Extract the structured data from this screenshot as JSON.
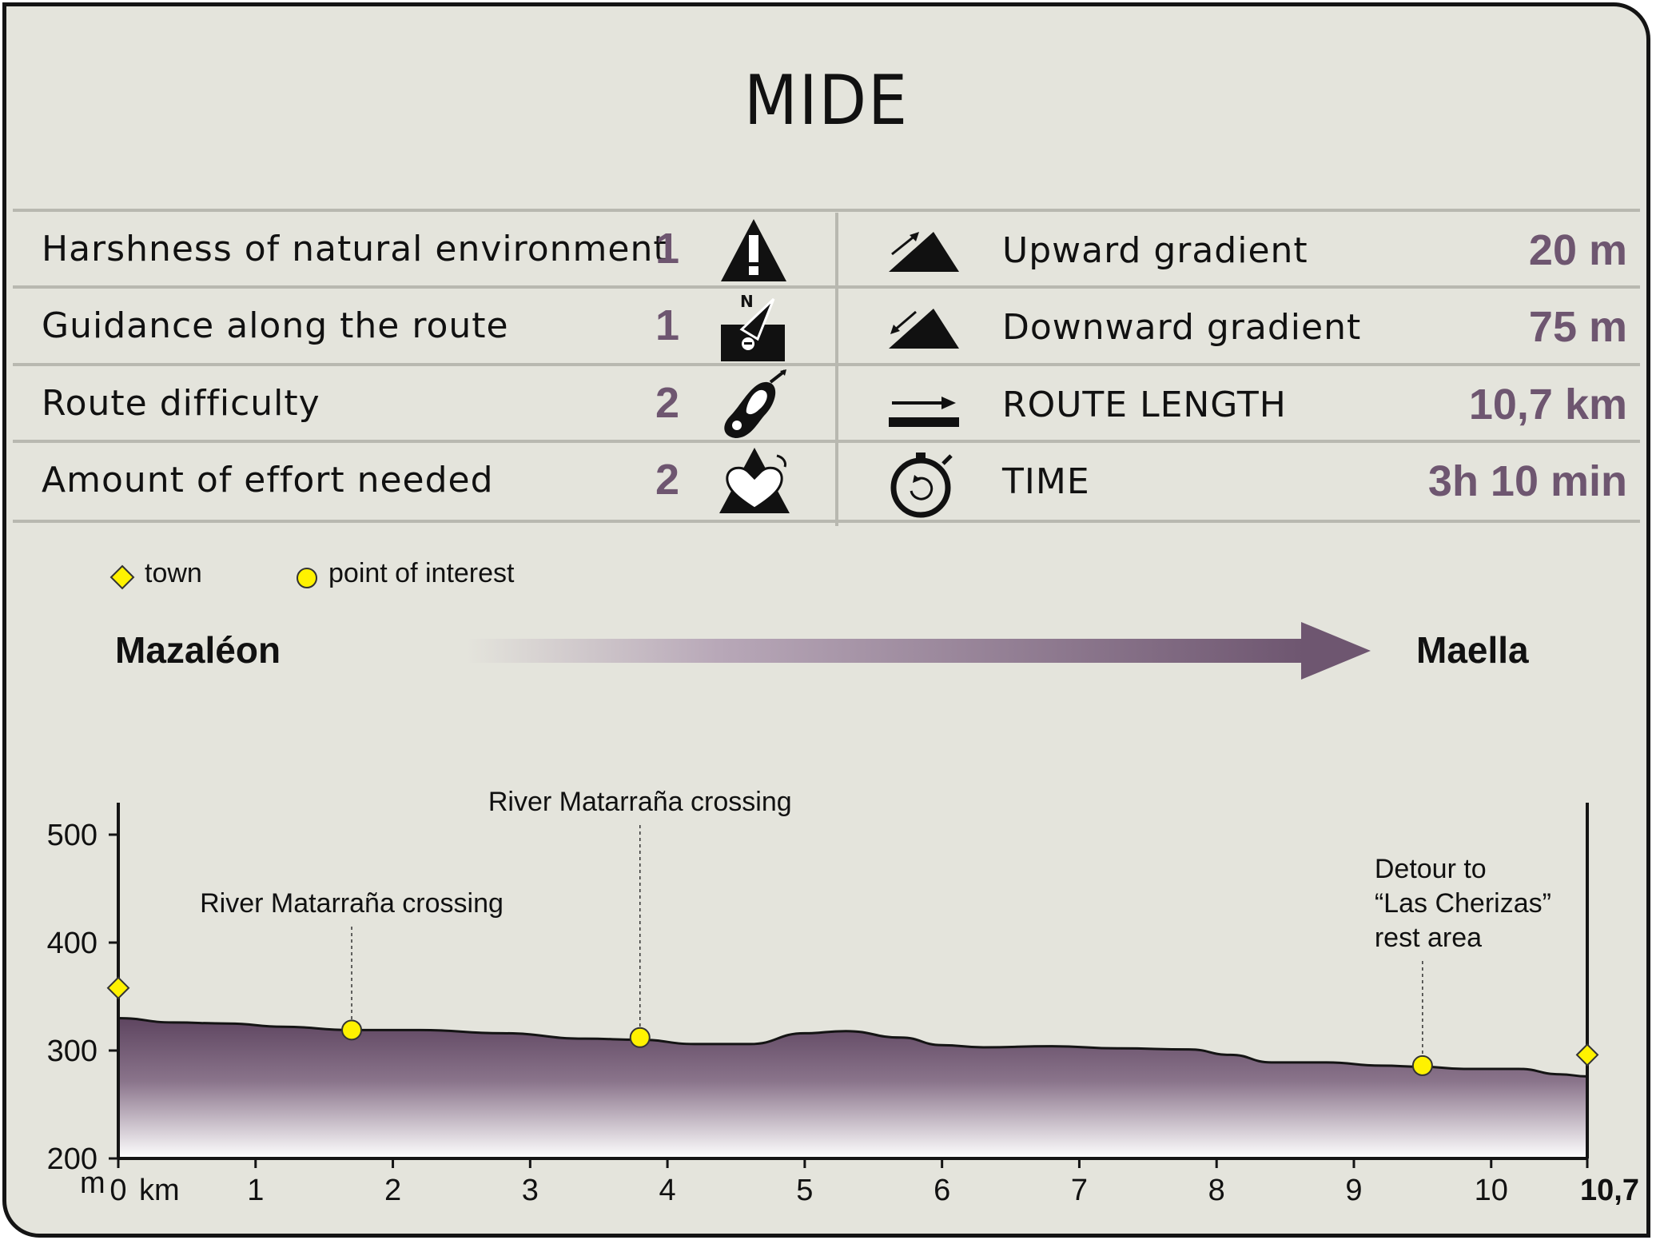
{
  "title": "MIDE",
  "mide": [
    {
      "label": "Harshness of natural environment",
      "value": "1",
      "icon": "warning-icon"
    },
    {
      "label": "Guidance along the route",
      "value": "1",
      "icon": "compass-guide-icon"
    },
    {
      "label": "Route difficulty",
      "value": "2",
      "icon": "footprint-icon"
    },
    {
      "label": "Amount of effort needed",
      "value": "2",
      "icon": "heart-effort-icon"
    }
  ],
  "stats": [
    {
      "label": "Upward gradient",
      "value": "20 m",
      "icon": "upward-gradient-icon"
    },
    {
      "label": "Downward gradient",
      "value": "75 m",
      "icon": "downward-gradient-icon"
    },
    {
      "label": "ROUTE LENGTH",
      "value": "10,7 km",
      "icon": "route-length-icon"
    },
    {
      "label": "TIME",
      "value": "3h 10 min",
      "icon": "stopwatch-icon"
    }
  ],
  "legend": {
    "town": "town",
    "poi": "point of interest"
  },
  "route": {
    "start": "Mazaléon",
    "end": "Maella"
  },
  "colors": {
    "accent": "#6e5670",
    "profile_top": "#5e4560",
    "marker": "#fff200",
    "background": "#e4e4dc"
  },
  "chart_data": {
    "type": "area",
    "title": "",
    "xlabel": "km",
    "ylabel": "m",
    "xlim": [
      0,
      10.7
    ],
    "ylim": [
      200,
      500
    ],
    "x_ticks": [
      "0",
      "1",
      "2",
      "3",
      "4",
      "5",
      "6",
      "7",
      "8",
      "9",
      "10",
      "10,7"
    ],
    "y_ticks": [
      "200",
      "300",
      "400",
      "500"
    ],
    "x": [
      0,
      0.4,
      0.8,
      1.2,
      1.7,
      2.2,
      2.8,
      3.4,
      3.8,
      4.2,
      4.6,
      5.0,
      5.3,
      5.7,
      6.0,
      6.3,
      6.8,
      7.3,
      7.8,
      8.1,
      8.4,
      8.8,
      9.2,
      9.5,
      9.8,
      10.2,
      10.5,
      10.7
    ],
    "y": [
      330,
      326,
      325,
      322,
      319,
      319,
      316,
      311,
      310,
      306,
      306,
      316,
      318,
      312,
      305,
      303,
      304,
      302,
      301,
      296,
      289,
      289,
      286,
      285,
      283,
      283,
      278,
      276
    ],
    "towns": [
      {
        "x": 0,
        "y": 358
      },
      {
        "x": 10.7,
        "y": 296
      }
    ],
    "points_of_interest": [
      {
        "x": 1.7,
        "y": 319,
        "label": [
          "River Matarraña crossing"
        ]
      },
      {
        "x": 3.8,
        "y": 312,
        "label": [
          "River Matarraña crossing"
        ]
      },
      {
        "x": 9.5,
        "y": 286,
        "label": [
          "Detour to",
          "“Las Cherizas”",
          "rest area"
        ]
      }
    ]
  }
}
